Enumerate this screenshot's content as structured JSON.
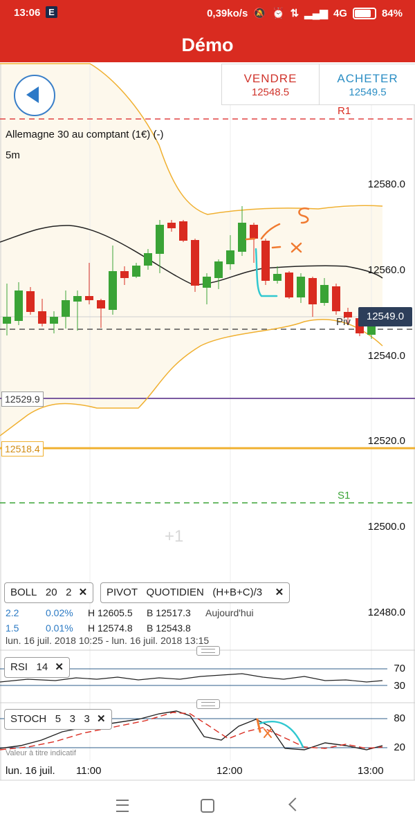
{
  "status": {
    "time": "13:06",
    "speed": "0,39ko/s",
    "network": "4G",
    "battery": "84%",
    "app_icon": "E"
  },
  "appbar": {
    "title": "Démo"
  },
  "trade": {
    "sell_label": "VENDRE",
    "sell_price": "12548.5",
    "buy_label": "ACHETER",
    "buy_price": "12549.5"
  },
  "instrument": {
    "name": "Allemagne 30 au comptant (1€) (-)",
    "timeframe": "5m"
  },
  "price_axis": [
    "12580.0",
    "12560.0",
    "12540.0",
    "12520.0",
    "12500.0",
    "12480.0"
  ],
  "levels": {
    "r1": "R1",
    "s1": "S1",
    "piv": "Piv",
    "purple": "12529.9",
    "orange": "12518.4",
    "current": "12549.0"
  },
  "watermark": "+1",
  "indicators": {
    "boll": {
      "name": "BOLL",
      "p1": "20",
      "p2": "2",
      "close": "✕"
    },
    "pivot": {
      "name": "PIVOT",
      "p1": "QUOTIDIEN",
      "p2": "(H+B+C)/3",
      "close": "✕"
    },
    "rsi": {
      "name": "RSI",
      "p1": "14",
      "close": "✕",
      "levels": [
        "70",
        "30"
      ]
    },
    "stoch": {
      "name": "STOCH",
      "p1": "5",
      "p2": "3",
      "p3": "3",
      "close": "✕",
      "levels": [
        "80",
        "20"
      ]
    }
  },
  "info": {
    "row1": {
      "a": "2.2",
      "b": "0.02%",
      "h": "H 12605.5",
      "l": "B 12517.3",
      "day": "Aujourd'hui"
    },
    "row2": {
      "a": "1.5",
      "b": "0.01%",
      "h": "H 12574.8",
      "l": "B 12543.8"
    },
    "range": "lun. 16 juil. 2018 10:25 - lun. 16 juil. 2018 13:15"
  },
  "indicative": "Valeur à titre indicatif",
  "time_axis": [
    "lun. 16 juil.",
    "11:00",
    "12:00",
    "13:00"
  ],
  "colors": {
    "brand": "#d92b20",
    "bull": "#3aa336",
    "bear": "#d92b20",
    "band": "#f0b030",
    "sma": "#222222",
    "purple": "#7a5aa0",
    "annot_orange": "#f07a30",
    "annot_cyan": "#30c8d0"
  }
}
